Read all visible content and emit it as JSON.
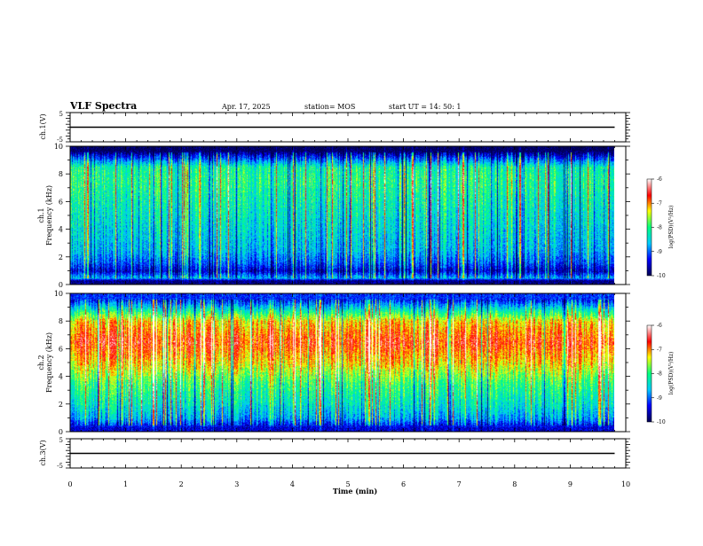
{
  "header": {
    "title": "VLF Spectra",
    "date": "Apr. 17, 2025",
    "station": "station= MOS",
    "start": "start  UT =   14: 50: 1"
  },
  "colorbar": {
    "label": "log(PSD)(V²/Hz)",
    "ticks": [
      "-6",
      "-7",
      "-8",
      "-9",
      "-10"
    ]
  },
  "chart_data": [
    {
      "type": "line",
      "name": "ch1-waveform",
      "ylabel": "ch.1(V)",
      "ylim": [
        -5,
        5
      ],
      "yticks": [
        "5",
        "-5"
      ],
      "xlim": [
        0,
        10
      ],
      "x": [
        0,
        9.8
      ],
      "y": [
        0,
        0
      ]
    },
    {
      "type": "heatmap",
      "name": "ch1-spectrogram",
      "ylabel": "ch.1",
      "ylabel2": "Frequency (kHz)",
      "ylim": [
        0,
        10
      ],
      "yticks": [
        "0",
        "2",
        "4",
        "6",
        "8",
        "10"
      ],
      "xlim": [
        0,
        10
      ],
      "data_end_min": 9.8,
      "colorscale": [
        "#000050",
        "#0000ff",
        "#00c8ff",
        "#00ff80",
        "#ffff00",
        "#ff0000",
        "#ffffff"
      ],
      "zlim": [
        -10,
        -6
      ],
      "band_profile": [
        {
          "f": 0.3,
          "z": -9.8
        },
        {
          "f": 0.5,
          "z": -8.6
        },
        {
          "f": 1.0,
          "z": -9.5
        },
        {
          "f": 1.6,
          "z": -9.0
        },
        {
          "f": 2.5,
          "z": -8.6
        },
        {
          "f": 5.0,
          "z": -8.3
        },
        {
          "f": 7.5,
          "z": -8.0
        },
        {
          "f": 8.5,
          "z": -8.1
        },
        {
          "f": 9.3,
          "z": -9.3
        },
        {
          "f": 9.7,
          "z": -10.0
        }
      ]
    },
    {
      "type": "heatmap",
      "name": "ch2-spectrogram",
      "ylabel": "ch.2",
      "ylabel2": "Frequency (kHz)",
      "ylim": [
        0,
        10
      ],
      "yticks": [
        "0",
        "2",
        "4",
        "6",
        "8",
        "10"
      ],
      "xlim": [
        0,
        10
      ],
      "data_end_min": 9.8,
      "colorscale": [
        "#000050",
        "#0000ff",
        "#00c8ff",
        "#00ff80",
        "#ffff00",
        "#ff0000",
        "#ffffff"
      ],
      "zlim": [
        -10,
        -6
      ],
      "band_profile": [
        {
          "f": 0.3,
          "z": -9.5
        },
        {
          "f": 1.0,
          "z": -8.7
        },
        {
          "f": 2.0,
          "z": -8.3
        },
        {
          "f": 3.5,
          "z": -7.9
        },
        {
          "f": 5.0,
          "z": -7.2
        },
        {
          "f": 6.5,
          "z": -6.7
        },
        {
          "f": 8.0,
          "z": -7.2
        },
        {
          "f": 8.8,
          "z": -8.2
        },
        {
          "f": 9.5,
          "z": -9.2
        }
      ]
    },
    {
      "type": "line",
      "name": "ch3-waveform",
      "ylabel": "ch.3(V)",
      "ylim": [
        -5,
        5
      ],
      "yticks": [
        "5",
        "-5"
      ],
      "xlim": [
        0,
        10
      ],
      "x": [
        0,
        9.8
      ],
      "y": [
        0,
        0
      ]
    }
  ],
  "xaxis": {
    "label": "Time (min)",
    "ticks": [
      "0",
      "1",
      "2",
      "3",
      "4",
      "5",
      "6",
      "7",
      "8",
      "9",
      "10"
    ]
  }
}
